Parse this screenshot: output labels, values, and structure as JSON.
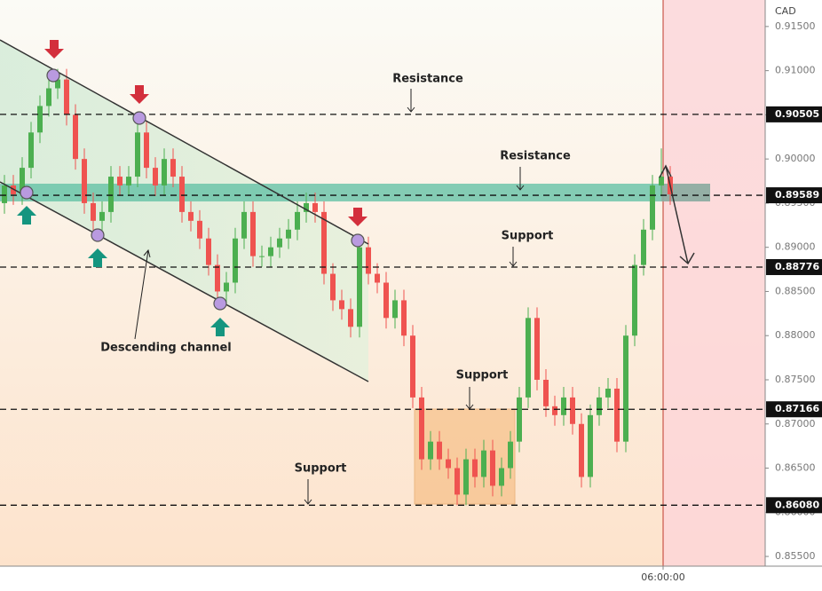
{
  "chart_data": {
    "type": "candlestick",
    "currency": "CAD",
    "open": [
      0.895,
      0.897,
      0.896,
      0.899,
      0.903,
      0.906,
      0.908,
      0.909,
      0.905,
      0.9,
      0.895,
      0.893,
      0.894,
      0.898,
      0.897,
      0.898,
      0.903,
      0.899,
      0.897,
      0.9,
      0.898,
      0.894,
      0.893,
      0.891,
      0.888,
      0.885,
      0.886,
      0.891,
      0.894,
      0.889,
      0.889,
      0.89,
      0.891,
      0.892,
      0.894,
      0.895,
      0.894,
      0.887,
      0.884,
      0.883,
      0.881,
      0.89,
      0.887,
      0.886,
      0.882,
      0.884,
      0.88,
      0.873,
      0.866,
      0.868,
      0.866,
      0.865,
      0.862,
      0.866,
      0.864,
      0.867,
      0.863,
      0.865,
      0.868,
      0.873,
      0.882,
      0.875,
      0.872,
      0.871,
      0.873,
      0.87,
      0.864,
      0.871,
      0.873,
      0.874,
      0.868,
      0.88,
      0.888,
      0.892,
      0.897,
      0.898
    ],
    "high": [
      0.8982,
      0.8982,
      0.9002,
      0.9042,
      0.9072,
      0.9092,
      0.9102,
      0.9102,
      0.9062,
      0.9012,
      0.8962,
      0.8952,
      0.8992,
      0.8992,
      0.8992,
      0.9042,
      0.9042,
      0.9002,
      0.9012,
      0.9012,
      0.8992,
      0.8952,
      0.8942,
      0.8922,
      0.8892,
      0.8872,
      0.8922,
      0.8952,
      0.8952,
      0.8902,
      0.8912,
      0.8922,
      0.8932,
      0.8952,
      0.8962,
      0.8962,
      0.8952,
      0.8882,
      0.8852,
      0.8842,
      0.8912,
      0.8912,
      0.8882,
      0.8872,
      0.8852,
      0.8852,
      0.8812,
      0.8742,
      0.8692,
      0.8692,
      0.8672,
      0.8662,
      0.8672,
      0.8672,
      0.8682,
      0.8682,
      0.8662,
      0.8692,
      0.8742,
      0.8832,
      0.8832,
      0.8762,
      0.8732,
      0.8742,
      0.8742,
      0.8712,
      0.8722,
      0.8742,
      0.8752,
      0.8752,
      0.8812,
      0.8892,
      0.8932,
      0.8982,
      0.9012,
      0.8992
    ],
    "low": [
      0.8938,
      0.8948,
      0.8948,
      0.8978,
      0.9018,
      0.9048,
      0.9068,
      0.9038,
      0.8988,
      0.8938,
      0.8918,
      0.8918,
      0.8928,
      0.8958,
      0.8958,
      0.8968,
      0.8978,
      0.8958,
      0.8958,
      0.8968,
      0.8928,
      0.8918,
      0.8898,
      0.8868,
      0.8838,
      0.8838,
      0.8848,
      0.8898,
      0.8878,
      0.8878,
      0.8878,
      0.8888,
      0.8898,
      0.8908,
      0.8928,
      0.8928,
      0.8858,
      0.8828,
      0.8818,
      0.8798,
      0.8798,
      0.8858,
      0.8848,
      0.8808,
      0.8808,
      0.8788,
      0.8718,
      0.8648,
      0.8648,
      0.8648,
      0.8638,
      0.8608,
      0.8608,
      0.8628,
      0.8628,
      0.8618,
      0.8618,
      0.8638,
      0.8668,
      0.8718,
      0.8738,
      0.8708,
      0.8698,
      0.8698,
      0.8688,
      0.8628,
      0.8628,
      0.8698,
      0.8718,
      0.8668,
      0.8668,
      0.8788,
      0.8868,
      0.8908,
      0.8958,
      0.8948
    ],
    "close": [
      0.897,
      0.896,
      0.899,
      0.903,
      0.906,
      0.908,
      0.909,
      0.905,
      0.9,
      0.895,
      0.893,
      0.894,
      0.898,
      0.897,
      0.898,
      0.903,
      0.899,
      0.897,
      0.9,
      0.898,
      0.894,
      0.893,
      0.891,
      0.888,
      0.885,
      0.886,
      0.891,
      0.894,
      0.889,
      0.889,
      0.89,
      0.891,
      0.892,
      0.894,
      0.895,
      0.894,
      0.887,
      0.884,
      0.883,
      0.881,
      0.89,
      0.887,
      0.886,
      0.882,
      0.884,
      0.88,
      0.873,
      0.866,
      0.868,
      0.866,
      0.865,
      0.862,
      0.866,
      0.864,
      0.867,
      0.863,
      0.865,
      0.868,
      0.873,
      0.882,
      0.875,
      0.872,
      0.871,
      0.873,
      0.87,
      0.864,
      0.871,
      0.873,
      0.874,
      0.868,
      0.88,
      0.888,
      0.892,
      0.897,
      0.898,
      0.896
    ],
    "up_color": "#4caf50",
    "down_color": "#ef5350",
    "xlim": [
      -0.5,
      85.7
    ],
    "xticks": [
      {
        "value": 74.2,
        "label": "06:00:00"
      }
    ],
    "ylim": [
      0.8539,
      0.918
    ],
    "yticks": [
      {
        "value": 0.855,
        "label": "0.85500"
      },
      {
        "value": 0.86,
        "label": "0.86000"
      },
      {
        "value": 0.865,
        "label": "0.86500"
      },
      {
        "value": 0.87,
        "label": "0.87000"
      },
      {
        "value": 0.875,
        "label": "0.87500"
      },
      {
        "value": 0.88,
        "label": "0.88000"
      },
      {
        "value": 0.885,
        "label": "0.88500"
      },
      {
        "value": 0.89,
        "label": "0.89000"
      },
      {
        "value": 0.895,
        "label": "0.89500"
      },
      {
        "value": 0.9,
        "label": "0.90000"
      },
      {
        "value": 0.905,
        "label": "0.90500"
      },
      {
        "value": 0.91,
        "label": "0.91000"
      },
      {
        "value": 0.915,
        "label": "0.91500"
      }
    ],
    "levels": [
      0.90505,
      0.89589,
      0.88776,
      0.87166,
      {
        "value": 0.8608,
        "label": "0.86080"
      }
    ],
    "annotations": [
      "Resistance",
      "Resistance",
      "Support",
      "Support",
      "Support",
      "Descending channel"
    ]
  }
}
